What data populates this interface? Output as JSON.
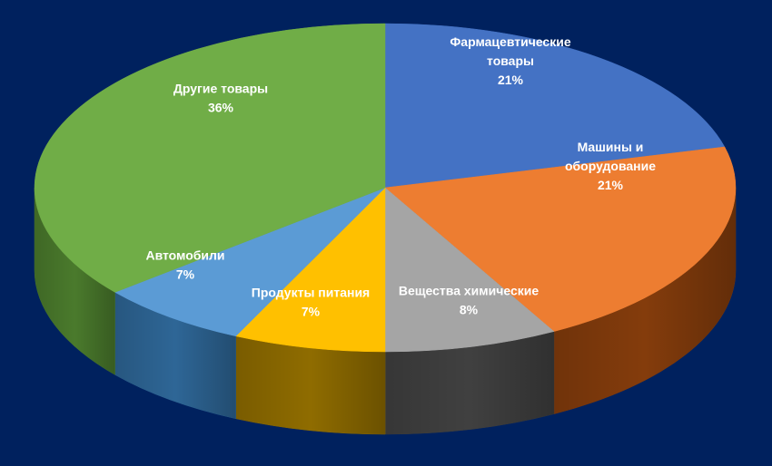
{
  "chart_data": {
    "type": "pie",
    "style": "3d",
    "title": "",
    "slices": [
      {
        "name": "Фармацевтические товары",
        "label_lines": [
          "Фармацевтические",
          "товары"
        ],
        "pct_label": "21%",
        "value": 21,
        "color": "#4472c4",
        "side_color": "#2f5597"
      },
      {
        "name": "Машины и оборудование",
        "label_lines": [
          "Машины и",
          "оборудование"
        ],
        "pct_label": "21%",
        "value": 21,
        "color": "#ed7d31",
        "side_color": "#843c0c"
      },
      {
        "name": "Вещества химические",
        "label_lines": [
          "Вещества химические"
        ],
        "pct_label": "8%",
        "value": 8,
        "color": "#a5a5a5",
        "side_color": "#404040"
      },
      {
        "name": "Продукты питания",
        "label_lines": [
          "Продукты питания"
        ],
        "pct_label": "7%",
        "value": 7,
        "color": "#ffc000",
        "side_color": "#8f6c00"
      },
      {
        "name": "Автомобили",
        "label_lines": [
          "Автомобили"
        ],
        "pct_label": "7%",
        "value": 7,
        "color": "#5b9bd5",
        "side_color": "#2e6696"
      },
      {
        "name": "Другие товары",
        "label_lines": [
          "Другие товары"
        ],
        "pct_label": "36%",
        "value": 36,
        "color": "#70ad47",
        "side_color": "#4a7a2c"
      }
    ],
    "background_color": "#00215e",
    "label_color": "#ffffff"
  }
}
